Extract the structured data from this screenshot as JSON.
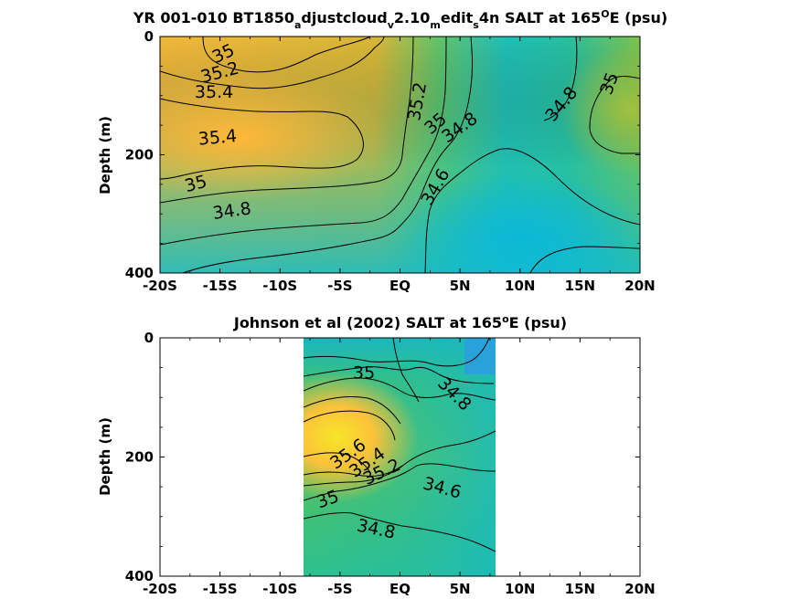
{
  "chart_data": [
    {
      "type": "heatmap",
      "title_parts": [
        "YR 001-010 BT1850",
        "a",
        "djustcloud",
        "v",
        "2.10",
        "m",
        "edit",
        "s",
        "4n SALT at 165",
        "O",
        "E (psu)"
      ],
      "xlabel": "",
      "ylabel": "Depth (m)",
      "x_ticks": [
        "-20S",
        "-15S",
        "-10S",
        "-5S",
        "EQ",
        "5N",
        "10N",
        "15N",
        "20N"
      ],
      "x_tick_values": [
        -20,
        -15,
        -10,
        -5,
        0,
        5,
        10,
        15,
        20
      ],
      "y_ticks": [
        "0",
        "200",
        "400"
      ],
      "y_tick_values": [
        0,
        200,
        400
      ],
      "xlim": [
        -20,
        20
      ],
      "ylim": [
        400,
        0
      ],
      "colorscale": {
        "low": "#0fbcd3",
        "mid": "#3cc66e",
        "high": "#ffba38"
      },
      "contour_labels": [
        {
          "text": "35",
          "x": -14.7,
          "y": 30,
          "angle": -25
        },
        {
          "text": "35.2",
          "x": -15,
          "y": 62,
          "angle": -15
        },
        {
          "text": "35.4",
          "x": -15.5,
          "y": 95,
          "angle": 0
        },
        {
          "text": "35.4",
          "x": -15.2,
          "y": 172,
          "angle": -5
        },
        {
          "text": "35",
          "x": -17,
          "y": 250,
          "angle": -15
        },
        {
          "text": "34.8",
          "x": -14,
          "y": 296,
          "angle": -8
        },
        {
          "text": "35.2",
          "x": 1.5,
          "y": 110,
          "angle": -80
        },
        {
          "text": "35",
          "x": 3,
          "y": 148,
          "angle": -40
        },
        {
          "text": "34.8",
          "x": 5,
          "y": 155,
          "angle": -35
        },
        {
          "text": "34.6",
          "x": 3,
          "y": 255,
          "angle": -60
        },
        {
          "text": "34.8",
          "x": 13.5,
          "y": 115,
          "angle": -50
        },
        {
          "text": "35",
          "x": 17.5,
          "y": 80,
          "angle": -70
        }
      ]
    },
    {
      "type": "heatmap",
      "title_parts": [
        "Johnson et al (2002) SALT at 165",
        "o",
        "E (psu)"
      ],
      "xlabel": "",
      "ylabel": "Depth (m)",
      "x_ticks": [
        "-20S",
        "-15S",
        "-10S",
        "-5S",
        "EQ",
        "5N",
        "10N",
        "15N",
        "20N"
      ],
      "x_tick_values": [
        -20,
        -15,
        -10,
        -5,
        0,
        5,
        10,
        15,
        20
      ],
      "y_ticks": [
        "0",
        "200",
        "400"
      ],
      "y_tick_values": [
        0,
        200,
        400
      ],
      "xlim": [
        -20,
        20
      ],
      "ylim": [
        400,
        0
      ],
      "data_x_range": [
        -8,
        8
      ],
      "colorscale": {
        "low": "#1e8fe6",
        "mid": "#3cc66e",
        "high": "#f0e628"
      },
      "contour_labels": [
        {
          "text": "35",
          "x": -3,
          "y": 60,
          "angle": 0
        },
        {
          "text": "34.8",
          "x": 4.5,
          "y": 95,
          "angle": 45
        },
        {
          "text": "35.6",
          "x": -4.3,
          "y": 196,
          "angle": -35
        },
        {
          "text": "35.4",
          "x": -2.7,
          "y": 210,
          "angle": -35
        },
        {
          "text": "35.2",
          "x": -1.5,
          "y": 226,
          "angle": -25
        },
        {
          "text": "34.6",
          "x": 3.5,
          "y": 253,
          "angle": 15
        },
        {
          "text": "35",
          "x": -6,
          "y": 272,
          "angle": -20
        },
        {
          "text": "34.8",
          "x": -2,
          "y": 322,
          "angle": 12
        }
      ]
    }
  ]
}
